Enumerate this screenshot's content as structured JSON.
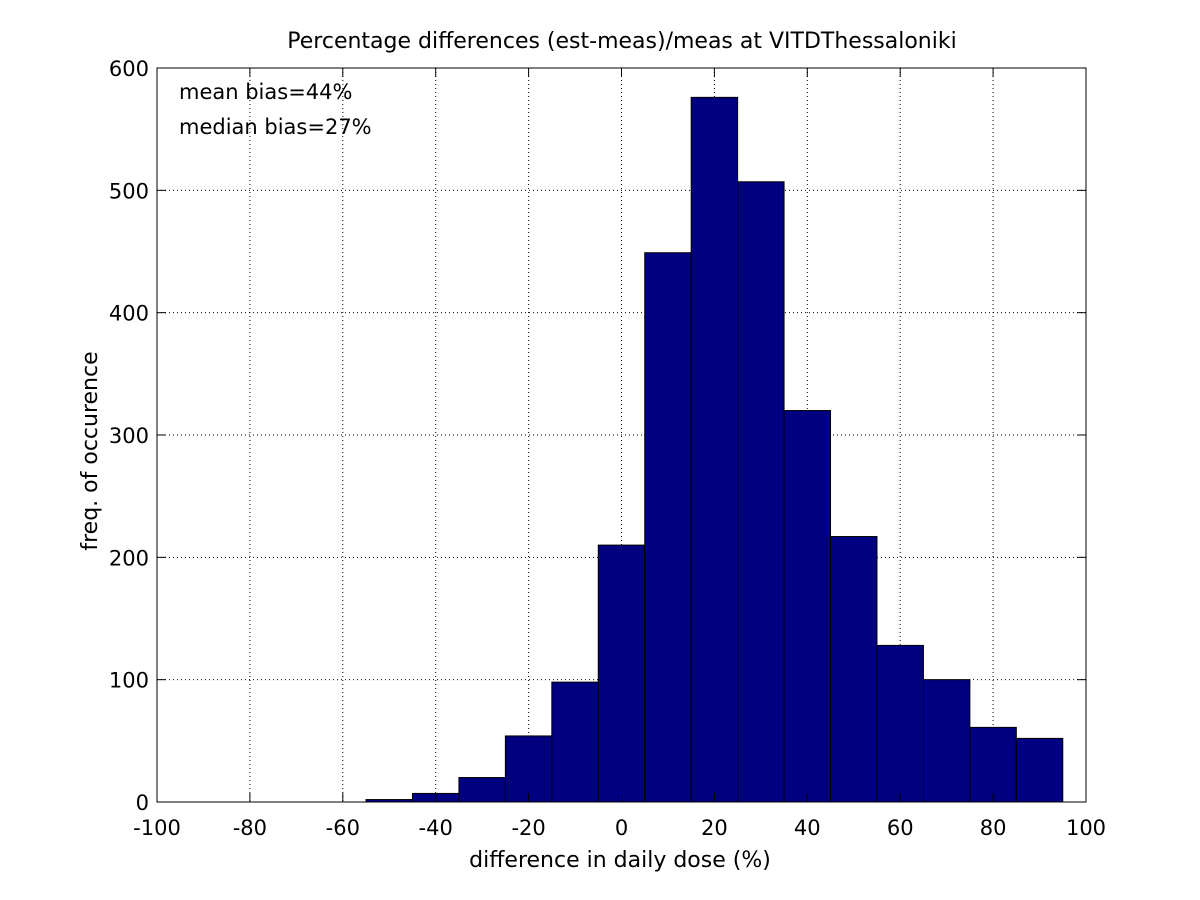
{
  "chart_data": {
    "type": "bar",
    "title": "Percentage differences (est-meas)/meas at VITDThessaloniki",
    "xlabel": "difference in daily dose (%)",
    "ylabel": "freq. of occurence",
    "xlim": [
      -100,
      100
    ],
    "ylim": [
      0,
      600
    ],
    "xticks": [
      "-100",
      "-80",
      "-60",
      "-40",
      "-20",
      "0",
      "20",
      "40",
      "60",
      "80",
      "100"
    ],
    "yticks": [
      "0",
      "100",
      "200",
      "300",
      "400",
      "500",
      "600"
    ],
    "grid": true,
    "bin_width": 10,
    "bin_centers": [
      -50,
      -40,
      -30,
      -20,
      -10,
      0,
      10,
      20,
      30,
      40,
      50,
      60,
      70,
      80,
      90
    ],
    "values": [
      2,
      7,
      20,
      54,
      98,
      210,
      449,
      576,
      507,
      320,
      217,
      128,
      100,
      61,
      52
    ],
    "bar_color": "#000080",
    "annotations": [
      "mean bias=44%",
      "median bias=27%"
    ]
  }
}
